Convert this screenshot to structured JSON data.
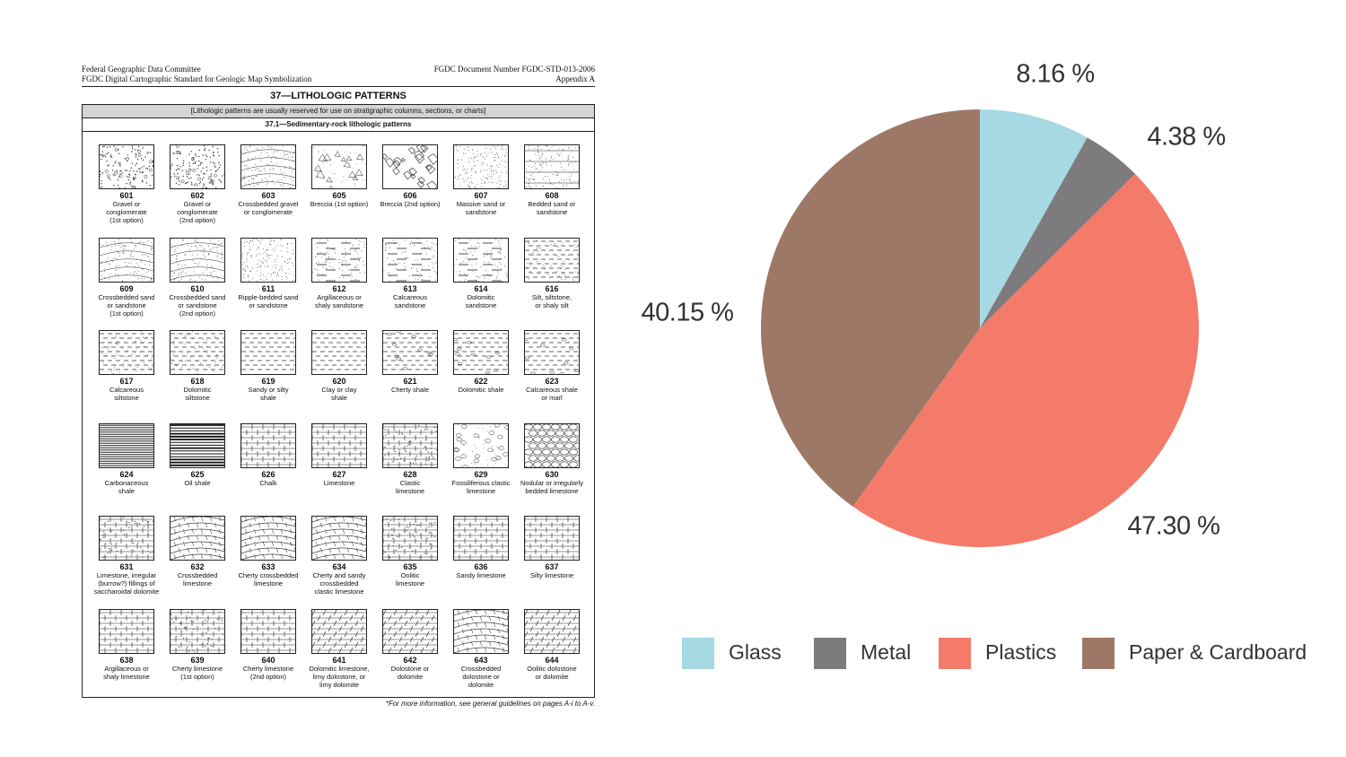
{
  "document": {
    "header_left_1": "Federal Geographic Data Committee",
    "header_left_2": "FGDC Digital Cartographic Standard for Geologic Map Symbolization",
    "header_right_1": "FGDC Document Number FGDC-STD-013-2006",
    "header_right_2": "Appendix A",
    "title": "37—LITHOLOGIC PATTERNS",
    "note": "[Lithologic patterns are usually reserved for use on stratigraphic columns, sections, or charts]",
    "subtitle": "37.1—Sedimentary-rock lithologic patterns",
    "footnote": "*For more information, see general guidelines on pages A-i to A-v.",
    "patterns": [
      {
        "num": "601",
        "label": [
          "Gravel or",
          "conglomerate",
          "(1st option)"
        ],
        "style": "dots-coarse"
      },
      {
        "num": "602",
        "label": [
          "Gravel or",
          "conglomerate",
          "(2nd option)"
        ],
        "style": "dots-coarse"
      },
      {
        "num": "603",
        "label": [
          "Crossbedded gravel",
          "or conglomerate"
        ],
        "style": "dots-cross"
      },
      {
        "num": "605",
        "label": [
          "Breccia (1st option)"
        ],
        "style": "breccia"
      },
      {
        "num": "606",
        "label": [
          "Breccia (2nd option)"
        ],
        "style": "breccia2"
      },
      {
        "num": "607",
        "label": [
          "Massive sand or",
          "sandstone"
        ],
        "style": "dots-fine"
      },
      {
        "num": "608",
        "label": [
          "Bedded sand or",
          "sandstone"
        ],
        "style": "dots-bedded"
      },
      {
        "num": "609",
        "label": [
          "Crossbedded sand",
          "or sandstone",
          "(1st option)"
        ],
        "style": "dots-cross"
      },
      {
        "num": "610",
        "label": [
          "Crossbedded sand",
          "or sandstone",
          "(2nd option)"
        ],
        "style": "dots-cross"
      },
      {
        "num": "611",
        "label": [
          "Ripple-bedded sand",
          "or sandstone"
        ],
        "style": "dots-fine"
      },
      {
        "num": "612",
        "label": [
          "Argillaceous or",
          "shaly sandstone"
        ],
        "style": "dots-dash"
      },
      {
        "num": "613",
        "label": [
          "Calcareous",
          "sandstone"
        ],
        "style": "dots-dash"
      },
      {
        "num": "614",
        "label": [
          "Dolomitic",
          "sandstone"
        ],
        "style": "dots-dash"
      },
      {
        "num": "616",
        "label": [
          "Silt, siltstone,",
          "or shaly silt"
        ],
        "style": "dash-dots"
      },
      {
        "num": "617",
        "label": [
          "Calcareous",
          "siltstone"
        ],
        "style": "dash-dots"
      },
      {
        "num": "618",
        "label": [
          "Dolomitic",
          "siltstone"
        ],
        "style": "dash-dots"
      },
      {
        "num": "619",
        "label": [
          "Sandy or silty",
          "shale"
        ],
        "style": "dashes"
      },
      {
        "num": "620",
        "label": [
          "Clay or clay",
          "shale"
        ],
        "style": "dashes"
      },
      {
        "num": "621",
        "label": [
          "Cherty shale"
        ],
        "style": "dashes-oval"
      },
      {
        "num": "622",
        "label": [
          "Dolomitic shale"
        ],
        "style": "dashes-oval"
      },
      {
        "num": "623",
        "label": [
          "Calcareous shale",
          "or marl"
        ],
        "style": "dashes-oval"
      },
      {
        "num": "624",
        "label": [
          "Carbonaceous",
          "shale"
        ],
        "style": "hlines"
      },
      {
        "num": "625",
        "label": [
          "Oil shale"
        ],
        "style": "hlines-bold"
      },
      {
        "num": "626",
        "label": [
          "Chalk"
        ],
        "style": "brick"
      },
      {
        "num": "627",
        "label": [
          "Limestone"
        ],
        "style": "brick"
      },
      {
        "num": "628",
        "label": [
          "Clastic",
          "limestone"
        ],
        "style": "brick-dots"
      },
      {
        "num": "629",
        "label": [
          "Fossiliferous clastic",
          "limestone"
        ],
        "style": "fossil"
      },
      {
        "num": "630",
        "label": [
          "Nodular or irregularly",
          "bedded limestone"
        ],
        "style": "nodular"
      },
      {
        "num": "631",
        "label": [
          "Limestone, irregular",
          "(burrow?) fillings of",
          "saccharoidal dolomite"
        ],
        "style": "brick-dots"
      },
      {
        "num": "632",
        "label": [
          "Crossbedded",
          "limestone"
        ],
        "style": "cross-brick"
      },
      {
        "num": "633",
        "label": [
          "Cherty crossbedded",
          "limestone"
        ],
        "style": "cross-brick"
      },
      {
        "num": "634",
        "label": [
          "Cherty and sandy",
          "crossbedded",
          "clastic limestone"
        ],
        "style": "cross-brick"
      },
      {
        "num": "635",
        "label": [
          "Oolitic",
          "limestone"
        ],
        "style": "brick-dots"
      },
      {
        "num": "636",
        "label": [
          "Sandy limestone"
        ],
        "style": "brick"
      },
      {
        "num": "637",
        "label": [
          "Silty limestone"
        ],
        "style": "brick"
      },
      {
        "num": "638",
        "label": [
          "Argillaceous or",
          "shaly limestone"
        ],
        "style": "brick"
      },
      {
        "num": "639",
        "label": [
          "Cherty limestone",
          "(1st option)"
        ],
        "style": "brick-dots"
      },
      {
        "num": "640",
        "label": [
          "Cherty limestone",
          "(2nd option)"
        ],
        "style": "brick"
      },
      {
        "num": "641",
        "label": [
          "Dolomitic limestone,",
          "limy dolostone, or",
          "limy dolomite"
        ],
        "style": "rhomb"
      },
      {
        "num": "642",
        "label": [
          "Dolostone or",
          "dolomite"
        ],
        "style": "rhomb"
      },
      {
        "num": "643",
        "label": [
          "Crossbedded",
          "dolostone or",
          "dolomite"
        ],
        "style": "cross-brick"
      },
      {
        "num": "644",
        "label": [
          "Oolitic dolostone",
          "or dolomite"
        ],
        "style": "rhomb"
      }
    ]
  },
  "chart_data": {
    "type": "pie",
    "slices": [
      {
        "name": "Glass",
        "value": 8.16,
        "label": "8.16 %",
        "color": "#a6d9e3"
      },
      {
        "name": "Metal",
        "value": 4.38,
        "label": "4.38 %",
        "color": "#7d7b7e"
      },
      {
        "name": "Plastics",
        "value": 47.3,
        "label": "47.30 %",
        "color": "#f47b69"
      },
      {
        "name": "Paper & Cardboard",
        "value": 40.15,
        "label": "40.15 %",
        "color": "#9e7866"
      }
    ],
    "legend_position": "bottom"
  }
}
